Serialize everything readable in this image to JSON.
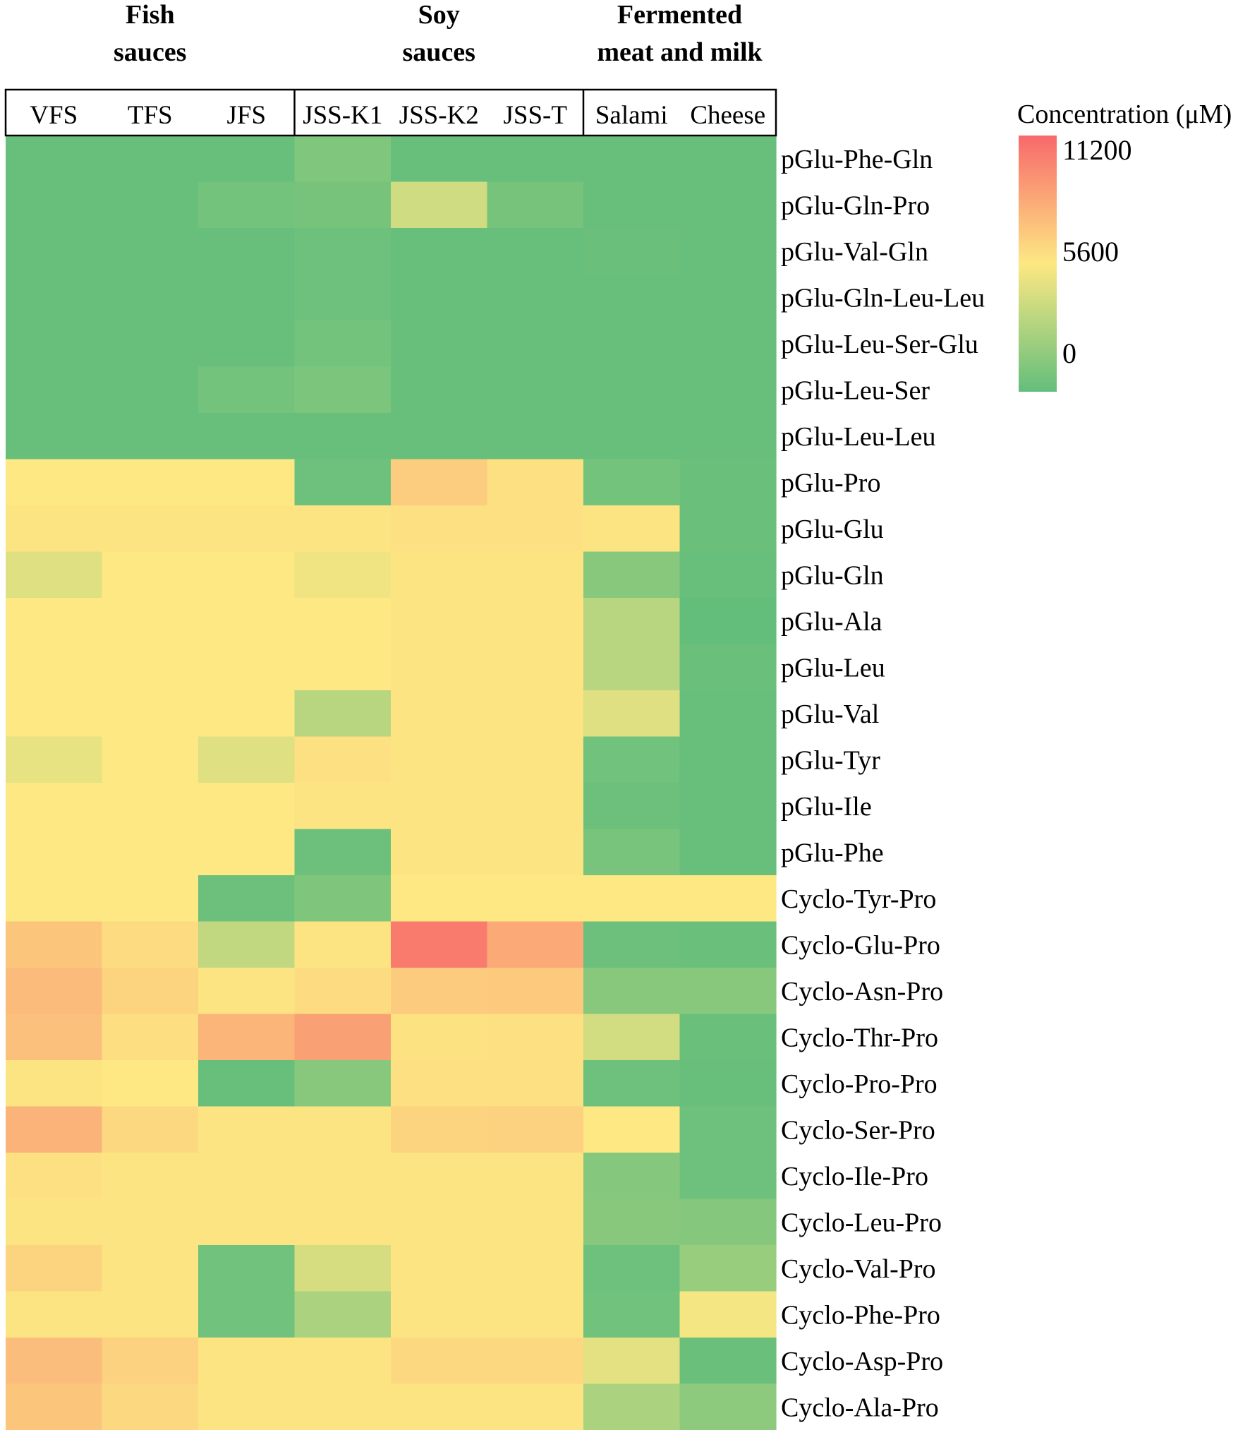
{
  "chart_data": {
    "type": "heatmap",
    "legend": {
      "title": "Concentration (μM)",
      "ticks": [
        11200,
        5600,
        0
      ],
      "range": [
        -1500,
        12100
      ],
      "colors": {
        "low": "#63be7b",
        "mid": "#fde883",
        "high": "#f8696b"
      }
    },
    "groups": [
      {
        "label_lines": [
          "Fish",
          "sauces"
        ],
        "columns": [
          "VFS",
          "TFS",
          "JFS"
        ]
      },
      {
        "label_lines": [
          "Soy",
          "sauces"
        ],
        "columns": [
          "JSS-K1",
          "JSS-K2",
          "JSS-T"
        ]
      },
      {
        "label_lines": [
          "Fermented",
          "meat and milk"
        ],
        "columns": [
          "Salami",
          "Cheese"
        ]
      }
    ],
    "columns": [
      "VFS",
      "TFS",
      "JFS",
      "JSS-K1",
      "JSS-K2",
      "JSS-T",
      "Salami",
      "Cheese"
    ],
    "rows": [
      "pGlu-Phe-Gln",
      "pGlu-Gln-Pro",
      "pGlu-Val-Gln",
      "pGlu-Gln-Leu-Leu",
      "pGlu-Leu-Ser-Glu",
      "pGlu-Leu-Ser",
      "pGlu-Leu-Leu",
      "pGlu-Pro",
      "pGlu-Glu",
      "pGlu-Gln",
      "pGlu-Ala",
      "pGlu-Leu",
      "pGlu-Val",
      "pGlu-Tyr",
      "pGlu-Ile",
      "pGlu-Phe",
      "Cyclo-Tyr-Pro",
      "Cyclo-Glu-Pro",
      "Cyclo-Asn-Pro",
      "Cyclo-Thr-Pro",
      "Cyclo-Pro-Pro",
      "Cyclo-Ser-Pro",
      "Cyclo-Ile-Pro",
      "Cyclo-Leu-Pro",
      "Cyclo-Val-Pro",
      "Cyclo-Phe-Pro",
      "Cyclo-Asp-Pro",
      "Cyclo-Ala-Pro"
    ],
    "values": [
      [
        -1300,
        -1300,
        -1300,
        -150,
        -1300,
        -1300,
        -1300,
        -1300
      ],
      [
        -1300,
        -1300,
        -700,
        -600,
        3500,
        -600,
        -1300,
        -1300
      ],
      [
        -1300,
        -1300,
        -1300,
        -1000,
        -1300,
        -1300,
        -1200,
        -1300
      ],
      [
        -1300,
        -1300,
        -1300,
        -1000,
        -1300,
        -1300,
        -1300,
        -1300
      ],
      [
        -1300,
        -1300,
        -1300,
        -700,
        -1300,
        -1300,
        -1300,
        -1300
      ],
      [
        -1300,
        -1300,
        -700,
        -400,
        -1300,
        -1300,
        -1300,
        -1300
      ],
      [
        -1300,
        -1300,
        -1300,
        -1300,
        -1300,
        -1300,
        -1300,
        -1300
      ],
      [
        5600,
        5600,
        5600,
        -1000,
        7000,
        6000,
        -700,
        -1200
      ],
      [
        5800,
        5800,
        5800,
        5800,
        6000,
        6000,
        5800,
        -1200
      ],
      [
        4200,
        5600,
        5600,
        5000,
        5800,
        5800,
        200,
        -1300
      ],
      [
        5600,
        5600,
        5600,
        5600,
        5800,
        5800,
        2400,
        -1500
      ],
      [
        5600,
        5600,
        5600,
        5600,
        5800,
        5800,
        2400,
        -1200
      ],
      [
        5600,
        5600,
        5600,
        2400,
        5800,
        5800,
        4200,
        -1300
      ],
      [
        4600,
        5600,
        4200,
        6000,
        5800,
        5800,
        -900,
        -1300
      ],
      [
        5600,
        5600,
        5600,
        5800,
        5800,
        5800,
        -1100,
        -1300
      ],
      [
        5600,
        5600,
        5600,
        -1100,
        5800,
        5800,
        -500,
        -1300
      ],
      [
        5600,
        5600,
        -1100,
        -200,
        5600,
        5600,
        5600,
        5600
      ],
      [
        7400,
        6200,
        2900,
        5800,
        11200,
        8800,
        -1100,
        -1200
      ],
      [
        7900,
        6600,
        5800,
        6200,
        7100,
        7200,
        200,
        200
      ],
      [
        7600,
        6100,
        8200,
        9300,
        5900,
        6000,
        3600,
        -1200
      ],
      [
        5800,
        5600,
        -1300,
        200,
        6000,
        6000,
        -1000,
        -1300
      ],
      [
        8300,
        6400,
        5800,
        5800,
        6700,
        6800,
        5600,
        -1000
      ],
      [
        6000,
        5800,
        5800,
        5800,
        5800,
        5800,
        0,
        -1000
      ],
      [
        5800,
        5800,
        5800,
        5800,
        5800,
        5800,
        200,
        0
      ],
      [
        6600,
        5800,
        -900,
        3800,
        5800,
        5800,
        -1000,
        1000
      ],
      [
        5800,
        5800,
        -900,
        1800,
        5800,
        5800,
        -900,
        5200
      ],
      [
        7800,
        6800,
        5800,
        5800,
        6400,
        6400,
        4400,
        -1200
      ],
      [
        7400,
        6400,
        5800,
        5800,
        5800,
        5800,
        1800,
        500
      ]
    ]
  }
}
